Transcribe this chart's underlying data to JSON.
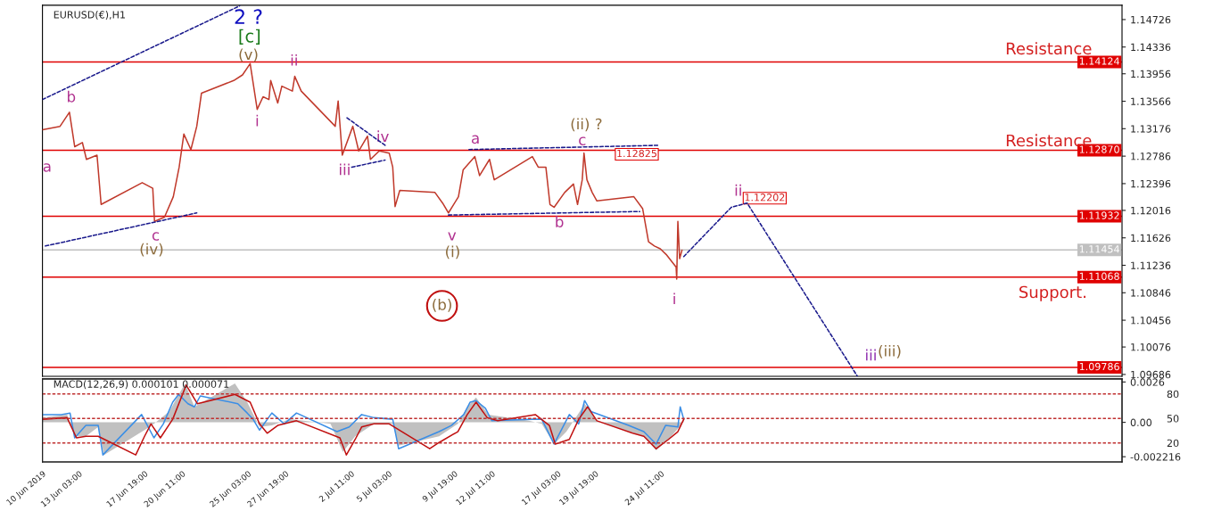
{
  "chart_data": [
    {
      "type": "line",
      "title": "EURUSD(€),H1",
      "xlim": [
        "2019-06-10T13:00",
        "2019-08-26T05:00"
      ],
      "ylim": [
        1.0966,
        1.1493
      ],
      "tick_labels": "y",
      "grid": false,
      "legend": false,
      "yticks": [
        1.14726,
        1.14336,
        1.13956,
        1.13566,
        1.13176,
        1.12786,
        1.12396,
        1.12016,
        1.11626,
        1.11236,
        1.10846,
        1.10456,
        1.10076,
        1.09686
      ],
      "series": [
        {
          "color": "#c0392b",
          "x": [
            "2019-06-10T13:00",
            "2019-06-11T19:00",
            "2019-06-12T11:00",
            "2019-06-12T20:00",
            "2019-06-13T09:00",
            "2019-06-13T16:00",
            "2019-06-14T10:00",
            "2019-06-14T17:00",
            "2019-06-17T15:00",
            "2019-06-18T09:00",
            "2019-06-18T12:00",
            "2019-06-19T05:00",
            "2019-06-19T20:00",
            "2019-06-20T06:00",
            "2019-06-20T14:00",
            "2019-06-21T02:00",
            "2019-06-21T12:00",
            "2019-06-21T20:00",
            "2019-06-24T03:00",
            "2019-06-24T18:00",
            "2019-06-25T07:00",
            "2019-06-25T19:00",
            "2019-06-26T05:00",
            "2019-06-26T15:00",
            "2019-06-26T18:00",
            "2019-06-27T06:00",
            "2019-06-27T13:00",
            "2019-06-28T07:00",
            "2019-06-28T11:00",
            "2019-06-28T22:00",
            "2019-07-01T08:00",
            "2019-07-01T13:00",
            "2019-07-01T20:00",
            "2019-07-02T14:00",
            "2019-07-03T00:00",
            "2019-07-03T15:00",
            "2019-07-03T20:00",
            "2019-07-04T11:00",
            "2019-07-05T04:00",
            "2019-07-05T10:00",
            "2019-07-05T14:00",
            "2019-07-05T22:00",
            "2019-07-08T10:00",
            "2019-07-08T23:00",
            "2019-07-09T09:00",
            "2019-07-10T02:00",
            "2019-07-10T10:00",
            "2019-07-11T06:00",
            "2019-07-11T14:00",
            "2019-07-12T07:00",
            "2019-07-12T15:00",
            "2019-07-15T08:00",
            "2019-07-15T18:00",
            "2019-07-16T07:00",
            "2019-07-16T14:00",
            "2019-07-16T21:00",
            "2019-07-17T15:00",
            "2019-07-18T06:00",
            "2019-07-18T13:00",
            "2019-07-18T21:00",
            "2019-07-19T00:00",
            "2019-07-19T05:00",
            "2019-07-19T14:00",
            "2019-07-19T22:00",
            "2019-07-22T13:00",
            "2019-07-23T04:00",
            "2019-07-23T14:00",
            "2019-07-24T00:00",
            "2019-07-24T10:00",
            "2019-07-24T20:00",
            "2019-07-25T13:00",
            "2019-07-25T14:00",
            "2019-07-25T16:00",
            "2019-07-25T19:00",
            "2019-07-25T23:00"
          ],
          "values": [
            1.1316,
            1.1321,
            1.1341,
            1.1292,
            1.1298,
            1.1274,
            1.128,
            1.121,
            1.1241,
            1.1233,
            1.1186,
            1.1192,
            1.1221,
            1.1263,
            1.131,
            1.1288,
            1.1321,
            1.1368,
            1.1386,
            1.1394,
            1.141,
            1.1345,
            1.1363,
            1.1359,
            1.1386,
            1.1354,
            1.1378,
            1.1371,
            1.1392,
            1.1371,
            1.1321,
            1.1357,
            1.128,
            1.1321,
            1.1286,
            1.1307,
            1.1274,
            1.1286,
            1.1283,
            1.1263,
            1.1207,
            1.123,
            1.1227,
            1.1212,
            1.1198,
            1.1221,
            1.1259,
            1.1278,
            1.1251,
            1.1274,
            1.1245,
            1.1278,
            1.1263,
            1.1263,
            1.121,
            1.1206,
            1.1227,
            1.1239,
            1.121,
            1.1245,
            1.1283,
            1.1245,
            1.1227,
            1.1215,
            1.1221,
            1.1204,
            1.1157,
            1.1151,
            1.1147,
            1.1139,
            1.1121,
            1.1104,
            1.1186,
            1.1133,
            1.1145
          ]
        },
        {
          "color": "#1a1a8c",
          "line_style": "dashed",
          "x": [
            "2019-07-26T02:00",
            "2019-07-29T11:00",
            "2019-07-30T14:00",
            "2019-08-07T10:00"
          ],
          "values": [
            1.1136,
            1.1206,
            1.1212,
            1.0966
          ]
        },
        {
          "color": "#1a1a8c",
          "line_style": "dashed",
          "x": [
            "2019-06-10T13:00",
            "2019-06-24T13:00"
          ],
          "values": [
            1.1359,
            1.1492
          ]
        },
        {
          "color": "#1a1a8c",
          "line_style": "dashed",
          "x": [
            "2019-06-10T18:00",
            "2019-06-21T12:00"
          ],
          "values": [
            1.1151,
            1.1198
          ]
        },
        {
          "color": "#1a1a8c",
          "line_style": "dashed",
          "x": [
            "2019-07-02T04:00",
            "2019-07-04T21:00"
          ],
          "values": [
            1.1333,
            1.1294
          ]
        },
        {
          "color": "#1a1a8c",
          "line_style": "dashed",
          "x": [
            "2019-07-02T12:00",
            "2019-07-04T21:00"
          ],
          "values": [
            1.1263,
            1.1273
          ]
        },
        {
          "color": "#1a1a8c",
          "line_style": "dashed",
          "x": [
            "2019-07-10T20:00",
            "2019-07-24T08:00"
          ],
          "values": [
            1.1288,
            1.1294
          ]
        },
        {
          "color": "#1a1a8c",
          "line_style": "dashed",
          "x": [
            "2019-07-09T09:00",
            "2019-07-22T23:00"
          ],
          "values": [
            1.1195,
            1.12
          ]
        }
      ],
      "ref_lines": [
        {
          "axis": "y",
          "value": 1.14124,
          "label": "1.14124",
          "color": "#e00000",
          "line_style": "solid"
        },
        {
          "axis": "y",
          "value": 1.1287,
          "label": "1.12870",
          "color": "#e00000",
          "line_style": "solid"
        },
        {
          "axis": "y",
          "value": 1.11932,
          "label": "1.11932",
          "color": "#e00000",
          "line_style": "solid"
        },
        {
          "axis": "y",
          "value": 1.11454,
          "label": "1.11454",
          "color": "#c0c0c0",
          "line_style": "solid"
        },
        {
          "axis": "y",
          "value": 1.11068,
          "label": "1.11068",
          "color": "#e00000",
          "line_style": "solid"
        },
        {
          "axis": "y",
          "value": 1.09786,
          "label": "1.09786",
          "color": "#e00000",
          "line_style": "solid"
        }
      ],
      "annotations": [
        "Resistance",
        "Resistance",
        "Support.",
        "a",
        "b",
        "c",
        "(iv)",
        "2 ?",
        "[c]",
        "(v)",
        "ii",
        "i",
        "iii",
        "iv",
        "a",
        "v",
        "(i)",
        "(b)",
        "b",
        "(ii) ?",
        "c",
        "1.12825",
        "ii",
        "1.12202",
        "i",
        "iii",
        "(iii)"
      ]
    },
    {
      "type": "line",
      "title": "MACD(12,26,9) 0.000101 0.000071",
      "xlim": [
        "2019-06-10T13:00",
        "2019-08-26T05:00"
      ],
      "ylim": [
        -0.00255,
        0.0028
      ],
      "y2lim": [
        -3.2,
        98.4
      ],
      "grid": false,
      "legend": false,
      "yticks": [
        {
          "value": 0.0026,
          "label": "0.0026"
        },
        {
          "value": 0,
          "label": "0.00"
        },
        {
          "value": -0.002216,
          "label": "-0.002216"
        }
      ],
      "y2ticks": [
        80,
        50,
        20
      ],
      "xticks": [
        {
          "value": "2019-06-10T13:00",
          "label": "10 Jun 2019"
        },
        {
          "value": "2019-06-13T03:00",
          "label": "13 Jun 03:00"
        },
        {
          "value": "2019-06-17T19:00",
          "label": "17 Jun 19:00"
        },
        {
          "value": "2019-06-20T11:00",
          "label": "20 Jun 11:00"
        },
        {
          "value": "2019-06-25T03:00",
          "label": "25 Jun 03:00"
        },
        {
          "value": "2019-06-27T19:00",
          "label": "27 Jun 19:00"
        },
        {
          "value": "2019-07-02T11:00",
          "label": "2 Jul 11:00"
        },
        {
          "value": "2019-07-05T03:00",
          "label": "5 Jul 03:00"
        },
        {
          "value": "2019-07-09T19:00",
          "label": "9 Jul 19:00"
        },
        {
          "value": "2019-07-12T11:00",
          "label": "12 Jul 11:00"
        },
        {
          "value": "2019-07-17T03:00",
          "label": "17 Jul 03:00"
        },
        {
          "value": "2019-07-19T19:00",
          "label": "19 Jul 19:00"
        },
        {
          "value": "2019-07-24T11:00",
          "label": "24 Jul 11:00"
        }
      ],
      "series": [
        {
          "type": "area",
          "color": "#c0c0c0",
          "x": [
            "2019-06-10T13:00",
            "2019-06-12T07:00",
            "2019-06-12T20:00",
            "2019-06-13T15:00",
            "2019-06-14T12:00",
            "2019-06-14T22:00",
            "2019-06-17T19:00",
            "2019-06-18T11:00",
            "2019-06-19T13:00",
            "2019-06-20T16:00",
            "2019-06-21T08:00",
            "2019-06-24T05:00",
            "2019-06-25T02:00",
            "2019-06-25T23:00",
            "2019-06-26T20:00",
            "2019-06-28T03:00",
            "2019-07-01T00:00",
            "2019-07-01T21:00",
            "2019-07-02T18:00",
            "2019-07-04T02:00",
            "2019-07-05T10:00",
            "2019-07-05T20:00",
            "2019-07-08T17:00",
            "2019-07-10T01:00",
            "2019-07-10T17:00",
            "2019-07-11T08:00",
            "2019-07-12T05:00",
            "2019-07-15T02:00",
            "2019-07-16T00:00",
            "2019-07-16T21:00",
            "2019-07-17T18:00",
            "2019-07-18T15:00",
            "2019-07-19T01:00",
            "2019-07-19T22:00",
            "2019-07-23T06:00",
            "2019-07-24T03:00",
            "2019-07-25T00:00",
            "2019-07-25T21:00",
            "2019-07-26T02:00"
          ],
          "values": [
            0.0003,
            0.0005,
            -0.0009,
            -0.0009,
            -0.0003,
            -0.0021,
            -0.0005,
            -0.0001,
            0.0007,
            0.0025,
            0.001,
            0.0025,
            0.0013,
            -0.0003,
            -0.0002,
            0.0002,
            -0.0001,
            -0.0019,
            -0.0009,
            -0.0001,
            -0.0001,
            -0.0015,
            -0.0009,
            -0.0001,
            0.001,
            0.0016,
            0.0005,
            0.0001,
            -0.0001,
            -0.0014,
            -0.0006,
            0.0006,
            0.0012,
            0.0001,
            -0.0009,
            -0.0018,
            -0.0011,
            -0.0002,
            0.0002
          ]
        },
        {
          "color": "#3a8ee6",
          "x": [
            "2019-06-10T13:00",
            "2019-06-11T21:00",
            "2019-06-12T12:00",
            "2019-06-12T20:00",
            "2019-06-13T15:00",
            "2019-06-14T12:00",
            "2019-06-14T20:00",
            "2019-06-17T14:00",
            "2019-06-18T11:00",
            "2019-06-19T03:00",
            "2019-06-19T19:00",
            "2019-06-20T05:00",
            "2019-06-20T21:00",
            "2019-06-21T08:00",
            "2019-06-21T18:00",
            "2019-06-24T10:00",
            "2019-06-25T02:00",
            "2019-06-25T12:00",
            "2019-06-25T23:00",
            "2019-06-26T20:00",
            "2019-06-27T17:00",
            "2019-06-28T14:00",
            "2019-07-01T11:00",
            "2019-07-02T08:00",
            "2019-07-03T05:00",
            "2019-07-04T02:00",
            "2019-07-05T10:00",
            "2019-07-05T20:00",
            "2019-07-08T17:00",
            "2019-07-09T14:00",
            "2019-07-10T11:00",
            "2019-07-10T22:00",
            "2019-07-11T08:00",
            "2019-07-12T00:00",
            "2019-07-12T11:00",
            "2019-07-15T08:00",
            "2019-07-16T00:00",
            "2019-07-16T21:00",
            "2019-07-17T23:00",
            "2019-07-18T15:00",
            "2019-07-19T01:00",
            "2019-07-19T12:00",
            "2019-07-22T04:00",
            "2019-07-23T06:00",
            "2019-07-24T03:00",
            "2019-07-24T19:00",
            "2019-07-25T16:00",
            "2019-07-25T20:00",
            "2019-07-26T02:00"
          ],
          "values": [
            0.0005,
            0.0005,
            0.0006,
            -0.001,
            -0.0002,
            -0.0002,
            -0.0021,
            0.0005,
            -0.001,
            -0.0001,
            0.0013,
            0.0018,
            0.0012,
            0.001,
            0.0017,
            0.0012,
            0.0006,
            0.0002,
            -0.0005,
            0.0006,
            -0.0001,
            0.0006,
            -0.0006,
            -0.0003,
            0.0005,
            0.0003,
            0.0002,
            -0.0017,
            -0.0006,
            -0.0002,
            0.0005,
            0.0013,
            0.0014,
            0.0009,
            0.0001,
            0.0002,
            0.0002,
            -0.0014,
            0.0005,
            -0.0001,
            0.0014,
            0.0007,
            -0.0002,
            -0.0006,
            -0.0014,
            -0.0002,
            -0.0003,
            0.001,
            0.0002
          ]
        },
        {
          "color": "#c01010",
          "x": [
            "2019-06-10T13:00",
            "2019-06-12T07:00",
            "2019-06-12T23:00",
            "2019-06-13T15:00",
            "2019-06-14T12:00",
            "2019-06-17T04:00",
            "2019-06-17T19:00",
            "2019-06-18T06:00",
            "2019-06-18T22:00",
            "2019-06-19T19:00",
            "2019-06-20T18:00",
            "2019-06-21T13:00",
            "2019-06-24T05:00",
            "2019-06-25T07:00",
            "2019-06-25T23:00",
            "2019-06-26T12:00",
            "2019-06-27T06:00",
            "2019-06-28T14:00",
            "2019-07-01T16:00",
            "2019-07-02T03:00",
            "2019-07-02T18:00",
            "2019-07-03T05:00",
            "2019-07-04T02:00",
            "2019-07-05T04:00",
            "2019-07-08T01:00",
            "2019-07-08T17:00",
            "2019-07-10T01:00",
            "2019-07-10T17:00",
            "2019-07-11T08:00",
            "2019-07-12T03:00",
            "2019-07-12T21:00",
            "2019-07-15T13:00",
            "2019-07-16T13:00",
            "2019-07-16T23:00",
            "2019-07-17T23:00",
            "2019-07-18T15:00",
            "2019-07-19T06:00",
            "2019-07-19T22:00",
            "2019-07-22T11:00",
            "2019-07-23T06:00",
            "2019-07-24T03:00",
            "2019-07-25T00:00",
            "2019-07-25T16:00",
            "2019-07-26T02:00"
          ],
          "values": [
            0.0002,
            0.0003,
            -0.001,
            -0.0009,
            -0.0009,
            -0.0021,
            -0.0009,
            -0.0001,
            -0.001,
            0.0002,
            0.0024,
            0.0012,
            0.0018,
            0.0013,
            -0.0001,
            -0.0007,
            -0.0002,
            0.0001,
            -0.001,
            -0.0021,
            -0.0011,
            -0.0003,
            -0.0001,
            -0.0001,
            -0.0017,
            -0.0013,
            -0.0006,
            0.0005,
            0.0013,
            0.0003,
            0.0001,
            0.0005,
            -0.0002,
            -0.0014,
            -0.0011,
            0.0002,
            0.001,
            0.0001,
            -0.0007,
            -0.0009,
            -0.0017,
            -0.0011,
            -0.0006,
            0.0002
          ]
        }
      ],
      "ref_lines": [
        {
          "axis": "y2",
          "value": 80,
          "color": "#c03030",
          "line_style": "dashed"
        },
        {
          "axis": "y2",
          "value": 50,
          "color": "#c03030",
          "line_style": "dashed"
        },
        {
          "axis": "y2",
          "value": 20,
          "color": "#c03030",
          "line_style": "dashed"
        }
      ]
    }
  ]
}
